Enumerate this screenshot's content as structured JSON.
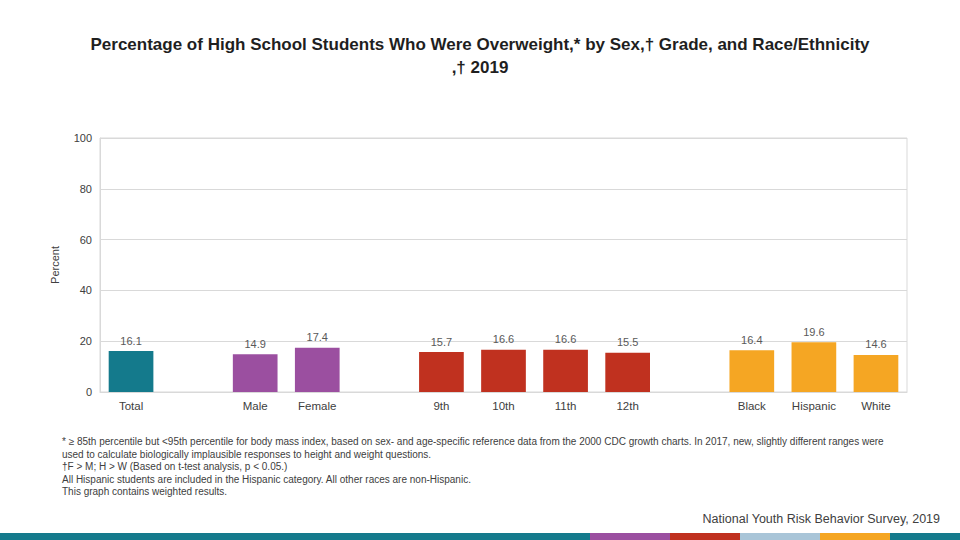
{
  "chart_data": {
    "type": "bar",
    "title": "Percentage of High School Students Who Were Overweight,* by Sex,† Grade, and Race/Ethnicity,† 2019",
    "y_label": "Percent",
    "categories": [
      "Total",
      null,
      "Male",
      "Female",
      null,
      "9th",
      "10th",
      "11th",
      "12th",
      null,
      "Black",
      "Hispanic",
      "White"
    ],
    "values": [
      16.1,
      null,
      14.9,
      17.4,
      null,
      15.7,
      16.6,
      16.6,
      15.5,
      null,
      16.4,
      19.6,
      14.6
    ],
    "colors": [
      "#147a8c",
      null,
      "#9b4fa0",
      "#9b4fa0",
      null,
      "#c0311f",
      "#c0311f",
      "#c0311f",
      "#c0311f",
      null,
      "#f5a623",
      "#f5a623",
      "#f5a623"
    ],
    "ylim": [
      0,
      100
    ],
    "yticks": [
      0,
      20,
      40,
      60,
      80,
      100
    ],
    "grid": true,
    "data_labels": true,
    "annotations": [
      "* ≥ 85th percentile but <95th percentile for body mass index, based on sex- and age-specific reference data from the 2000 CDC growth charts. In 2017, new, slightly different ranges were used to calculate biologically implausible responses to height and weight questions.",
      "†F > M; H > W (Based on t-test analysis, p < 0.05.)",
      "All Hispanic students are included in the Hispanic category.  All other races are non-Hispanic.",
      "This graph contains weighted results."
    ],
    "source": "National Youth Risk Behavior Survey, 2019"
  }
}
